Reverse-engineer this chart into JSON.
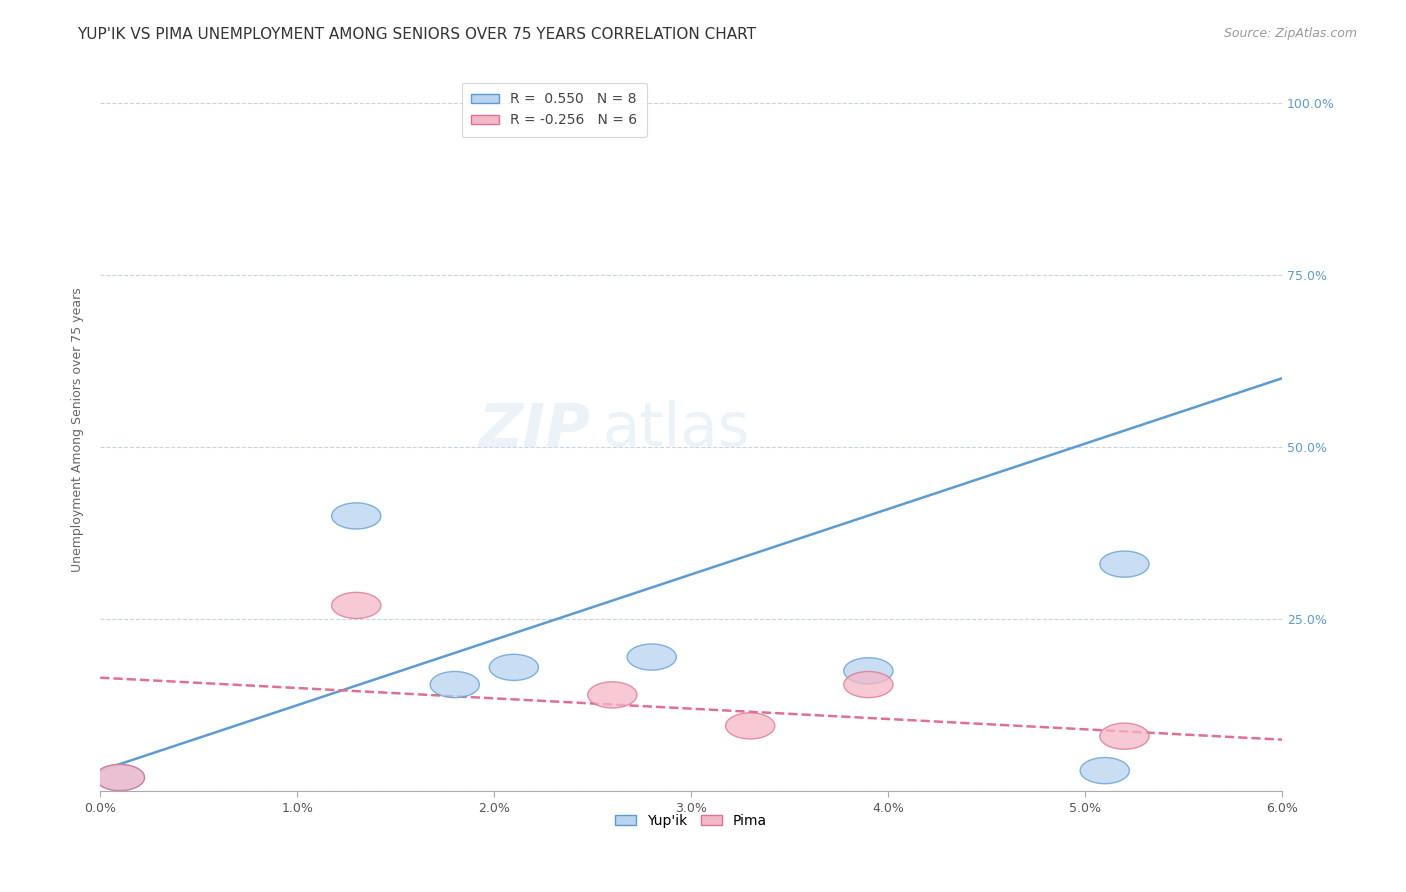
{
  "title": "YUP'IK VS PIMA UNEMPLOYMENT AMONG SENIORS OVER 75 YEARS CORRELATION CHART",
  "source": "Source: ZipAtlas.com",
  "ylabel": "Unemployment Among Seniors over 75 years",
  "xmin": 0.0,
  "xmax": 0.06,
  "ymin": 0.0,
  "ymax": 1.05,
  "watermark_zip": "ZIP",
  "watermark_atlas": "atlas",
  "yupik_x": [
    0.001,
    0.013,
    0.018,
    0.021,
    0.028,
    0.039,
    0.051,
    0.052
  ],
  "yupik_y": [
    0.02,
    0.4,
    0.155,
    0.18,
    0.195,
    0.175,
    0.03,
    0.33
  ],
  "pima_x": [
    0.001,
    0.013,
    0.026,
    0.033,
    0.039,
    0.052
  ],
  "pima_y": [
    0.02,
    0.27,
    0.14,
    0.095,
    0.155,
    0.08
  ],
  "yupik_color": "#b8d4ee",
  "pima_color": "#f4b8c8",
  "yupik_line_color": "#5b9bd5",
  "pima_line_color": "#e07090",
  "background_color": "#ffffff",
  "grid_color": "#c8d4e4",
  "title_fontsize": 11,
  "source_fontsize": 9,
  "axis_label_fontsize": 9,
  "tick_fontsize": 9,
  "legend_fontsize": 10,
  "watermark_fontsize_zip": 44,
  "watermark_fontsize_atlas": 44,
  "watermark_color": "#dce8f4",
  "watermark_alpha": 0.55,
  "yupik_line_intercept": 0.03,
  "yupik_line_slope": 9.5,
  "pima_line_intercept": 0.165,
  "pima_line_slope": -1.5
}
